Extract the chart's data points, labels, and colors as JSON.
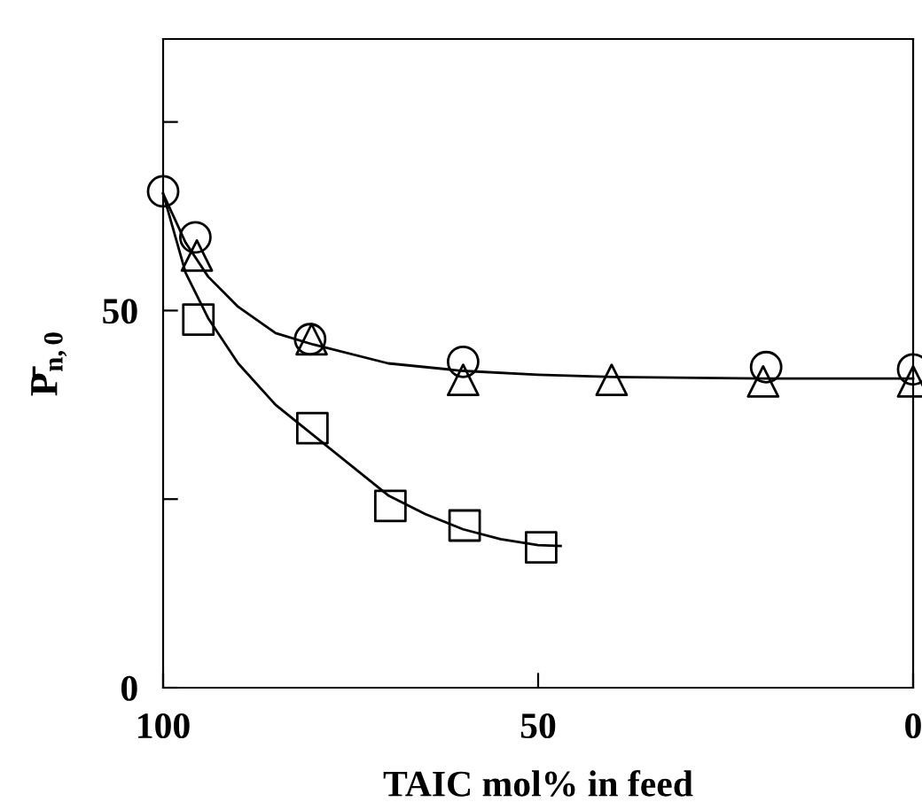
{
  "chart_data": {
    "type": "scatter",
    "xlabel": "TAIC mol% in feed",
    "ylabel": "P̄$_{n,0}$",
    "xlim": [
      100,
      0
    ],
    "ylim": [
      0,
      86
    ],
    "xticks": [
      100,
      50,
      0
    ],
    "yticks": [
      0,
      {
        "value": 25,
        "label": null
      },
      50,
      {
        "value": 75,
        "label": null
      }
    ],
    "grid": false,
    "series": [
      {
        "type": "line",
        "color": "#000000",
        "marker": "none",
        "x": [
          100,
          97,
          94,
          90,
          85,
          80,
          70,
          60,
          50,
          40,
          20,
          0
        ],
        "values": [
          65.5,
          59,
          54.5,
          50.5,
          47,
          45.5,
          43,
          42,
          41.5,
          41.2,
          41,
          41
        ]
      },
      {
        "type": "line",
        "color": "#000000",
        "marker": "none",
        "x": [
          100,
          97,
          94,
          90,
          85,
          80,
          75,
          70,
          65,
          60,
          55,
          50,
          47
        ],
        "values": [
          65.5,
          55,
          49,
          43,
          37.5,
          33.5,
          29.5,
          25.5,
          23,
          21,
          19.7,
          18.9,
          18.8
        ]
      },
      {
        "color": "#000000",
        "marker": "circle",
        "x": [
          100,
          95.7,
          80.4,
          60,
          19.6,
          0
        ],
        "values": [
          65.8,
          59.7,
          46.2,
          43.2,
          42.5,
          42.2
        ]
      },
      {
        "color": "#000000",
        "marker": "triangle",
        "x": [
          95.5,
          80.2,
          60,
          40.2,
          20,
          0
        ],
        "values": [
          57.3,
          46.2,
          40.8,
          40.8,
          40.6,
          40.6
        ]
      },
      {
        "color": "#000000",
        "marker": "square",
        "x": [
          95.3,
          80.1,
          69.7,
          59.8,
          49.6
        ],
        "values": [
          48.8,
          34.4,
          24.1,
          21.5,
          18.6
        ]
      }
    ]
  }
}
